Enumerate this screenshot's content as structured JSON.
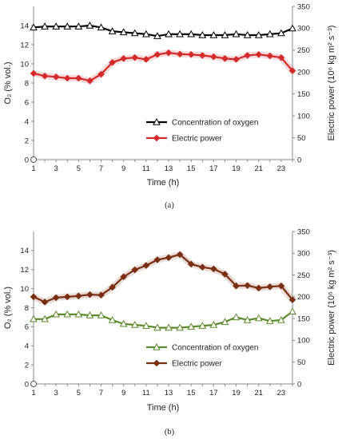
{
  "chart_data": [
    {
      "type": "line",
      "caption": "(a)",
      "x": [
        1,
        2,
        3,
        4,
        5,
        6,
        7,
        8,
        9,
        10,
        11,
        12,
        13,
        14,
        15,
        16,
        17,
        18,
        19,
        20,
        21,
        22,
        23,
        24
      ],
      "x_ticks": [
        "1",
        "3",
        "5",
        "7",
        "9",
        "11",
        "13",
        "15",
        "17",
        "19",
        "21",
        "23"
      ],
      "xlabel": "Time (h)",
      "ylabel_left": "O₂ (% vol.)",
      "ylabel_right": "Electric power (10⁶ kg m² s⁻³)",
      "ylim_left": [
        0,
        16
      ],
      "yticks_left": [
        "0",
        "2",
        "4",
        "6",
        "8",
        "10",
        "12",
        "14"
      ],
      "ylim_right": [
        0,
        350
      ],
      "yticks_right": [
        "0",
        "50",
        "100",
        "150",
        "200",
        "250",
        "300",
        "350"
      ],
      "grid": false,
      "legend_position": "lower-right",
      "series": [
        {
          "name": "Concentration of oxygen",
          "axis": "left",
          "color": "#000000",
          "marker": "triangle-open",
          "values": [
            13.8,
            13.9,
            13.9,
            13.9,
            13.9,
            14.0,
            13.8,
            13.4,
            13.3,
            13.2,
            13.1,
            12.9,
            13.1,
            13.1,
            13.1,
            13.0,
            13.0,
            13.0,
            13.1,
            13.0,
            13.0,
            13.1,
            13.2,
            13.7
          ]
        },
        {
          "name": "Electric power",
          "axis": "right",
          "color": "#d42a2a",
          "marker": "diamond-filled",
          "values": [
            197,
            191,
            189,
            186,
            186,
            180,
            195,
            222,
            231,
            233,
            229,
            240,
            244,
            241,
            240,
            238,
            235,
            231,
            229,
            238,
            240,
            237,
            233,
            203
          ]
        }
      ]
    },
    {
      "type": "line",
      "caption": "(b)",
      "x": [
        1,
        2,
        3,
        4,
        5,
        6,
        7,
        8,
        9,
        10,
        11,
        12,
        13,
        14,
        15,
        16,
        17,
        18,
        19,
        20,
        21,
        22,
        23,
        24
      ],
      "x_ticks": [
        "1",
        "3",
        "5",
        "7",
        "9",
        "11",
        "13",
        "15",
        "17",
        "19",
        "21",
        "23"
      ],
      "xlabel": "Time (h)",
      "ylabel_left": "O₂ (% vol.)",
      "ylabel_right": "Electric power (10⁶ kg m² s⁻³)",
      "ylim_left": [
        0,
        16
      ],
      "yticks_left": [
        "0",
        "2",
        "4",
        "6",
        "8",
        "10",
        "12",
        "14"
      ],
      "ylim_right": [
        0,
        350
      ],
      "yticks_right": [
        "0",
        "50",
        "100",
        "150",
        "200",
        "250",
        "300",
        "350"
      ],
      "grid": false,
      "legend_position": "lower-right",
      "series": [
        {
          "name": "Concentration of oxygen",
          "axis": "left",
          "color": "#5a8a2a",
          "marker": "triangle-open",
          "values": [
            6.8,
            6.8,
            7.3,
            7.3,
            7.3,
            7.2,
            7.2,
            6.7,
            6.3,
            6.2,
            6.1,
            5.9,
            5.9,
            5.9,
            6.0,
            6.1,
            6.2,
            6.5,
            7.0,
            6.7,
            6.9,
            6.6,
            6.7,
            7.6
          ]
        },
        {
          "name": "Electric power",
          "axis": "right",
          "color": "#7a2e12",
          "marker": "diamond-filled",
          "values": [
            200,
            188,
            198,
            200,
            202,
            205,
            204,
            222,
            246,
            262,
            272,
            285,
            290,
            297,
            275,
            268,
            264,
            252,
            225,
            226,
            220,
            223,
            225,
            193
          ]
        }
      ]
    }
  ]
}
